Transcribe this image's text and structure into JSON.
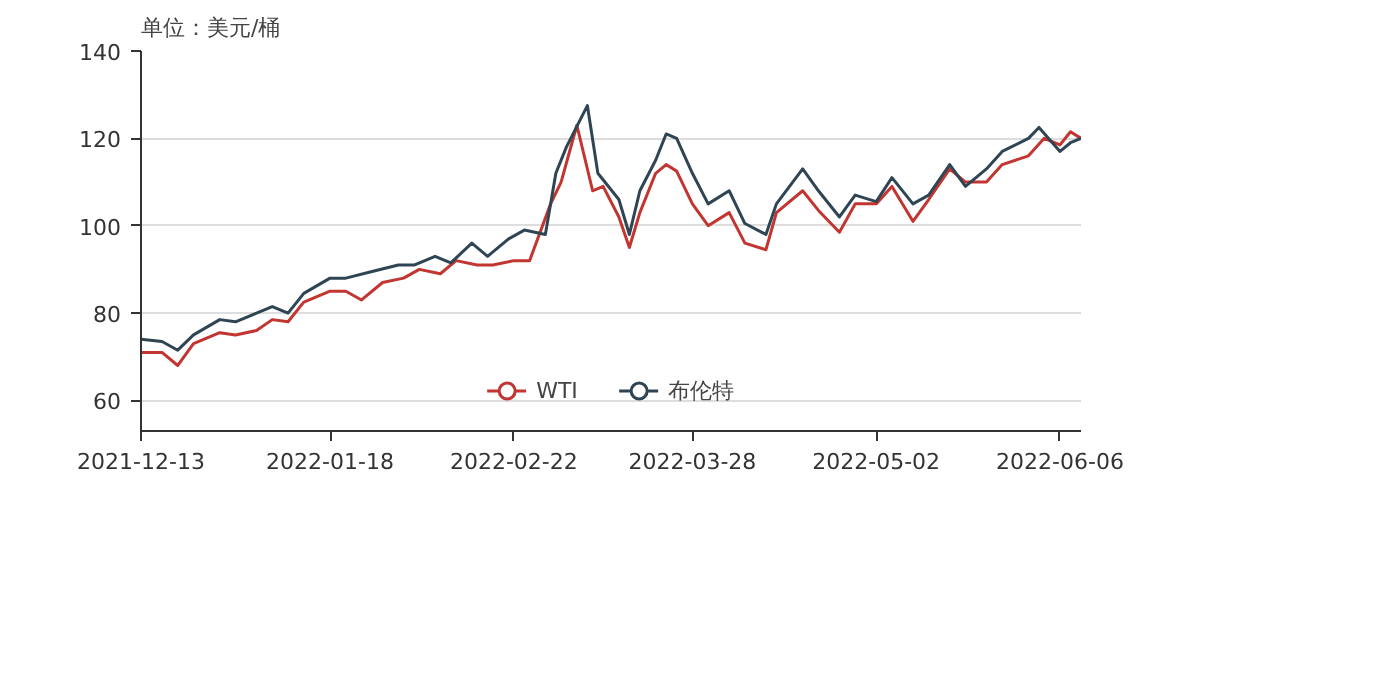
{
  "chart_data": {
    "type": "line",
    "ylabel": "单位：美元/桶",
    "xlim": [
      "2021-12-13",
      "2022-06-10"
    ],
    "xticks": [
      {
        "value": "2021-12-13",
        "label": "2021-12-13"
      },
      {
        "value": "2022-01-18",
        "label": "2022-01-18"
      },
      {
        "value": "2022-02-22",
        "label": "2022-02-22"
      },
      {
        "value": "2022-03-28",
        "label": "2022-03-28"
      },
      {
        "value": "2022-05-02",
        "label": "2022-05-02"
      },
      {
        "value": "2022-06-06",
        "label": "2022-06-06"
      }
    ],
    "ylim": [
      53,
      140
    ],
    "yticks": [
      60,
      80,
      100,
      120,
      140
    ],
    "grid": "y",
    "legend": "bottom",
    "marker": "none",
    "line_style": "solid",
    "series": [
      {
        "name": "WTI",
        "color": "#c23531",
        "x": [
          "2021-12-13",
          "2021-12-17",
          "2021-12-20",
          "2021-12-23",
          "2021-12-28",
          "2021-12-31",
          "2022-01-04",
          "2022-01-07",
          "2022-01-10",
          "2022-01-13",
          "2022-01-18",
          "2022-01-21",
          "2022-01-24",
          "2022-01-28",
          "2022-02-01",
          "2022-02-04",
          "2022-02-08",
          "2022-02-11",
          "2022-02-15",
          "2022-02-18",
          "2022-02-22",
          "2022-02-25",
          "2022-03-01",
          "2022-03-03",
          "2022-03-06",
          "2022-03-09",
          "2022-03-11",
          "2022-03-14",
          "2022-03-16",
          "2022-03-18",
          "2022-03-21",
          "2022-03-23",
          "2022-03-25",
          "2022-03-28",
          "2022-03-31",
          "2022-04-04",
          "2022-04-07",
          "2022-04-11",
          "2022-04-13",
          "2022-04-18",
          "2022-04-21",
          "2022-04-25",
          "2022-04-28",
          "2022-05-02",
          "2022-05-05",
          "2022-05-09",
          "2022-05-12",
          "2022-05-16",
          "2022-05-19",
          "2022-05-23",
          "2022-05-26",
          "2022-05-31",
          "2022-06-03",
          "2022-06-06",
          "2022-06-08",
          "2022-06-10"
        ],
        "values": [
          71,
          71,
          68,
          73,
          75.5,
          75,
          76,
          78.5,
          78,
          82.5,
          85,
          85,
          83,
          87,
          88,
          90,
          89,
          92,
          91,
          91,
          92,
          92,
          105,
          110,
          123,
          108,
          109,
          102,
          95,
          103,
          112,
          114,
          112.5,
          105,
          100,
          103,
          96,
          94.5,
          103,
          108,
          103.5,
          98.5,
          105,
          105,
          109,
          101,
          106,
          113,
          110,
          110,
          114,
          116,
          120,
          118.5,
          121.5,
          120
        ]
      },
      {
        "name": "布伦特",
        "color": "#2f4554",
        "x": [
          "2021-12-13",
          "2021-12-17",
          "2021-12-20",
          "2021-12-23",
          "2021-12-28",
          "2021-12-31",
          "2022-01-04",
          "2022-01-07",
          "2022-01-10",
          "2022-01-13",
          "2022-01-18",
          "2022-01-21",
          "2022-01-26",
          "2022-01-31",
          "2022-02-03",
          "2022-02-07",
          "2022-02-10",
          "2022-02-14",
          "2022-02-17",
          "2022-02-21",
          "2022-02-24",
          "2022-02-28",
          "2022-03-02",
          "2022-03-04",
          "2022-03-08",
          "2022-03-10",
          "2022-03-14",
          "2022-03-16",
          "2022-03-18",
          "2022-03-21",
          "2022-03-23",
          "2022-03-25",
          "2022-03-28",
          "2022-03-31",
          "2022-04-04",
          "2022-04-07",
          "2022-04-11",
          "2022-04-13",
          "2022-04-18",
          "2022-04-21",
          "2022-04-25",
          "2022-04-28",
          "2022-05-02",
          "2022-05-05",
          "2022-05-09",
          "2022-05-12",
          "2022-05-16",
          "2022-05-19",
          "2022-05-23",
          "2022-05-26",
          "2022-05-31",
          "2022-06-02",
          "2022-06-06",
          "2022-06-08",
          "2022-06-10"
        ],
        "values": [
          74,
          73.5,
          71.5,
          75,
          78.5,
          78,
          80,
          81.5,
          80,
          84.5,
          88,
          88,
          89.5,
          91,
          91,
          93,
          91.5,
          96,
          93,
          97,
          99,
          98,
          112,
          118,
          127.5,
          112,
          106,
          98,
          108,
          115,
          121,
          120,
          112,
          105,
          108,
          100.5,
          98,
          105,
          113,
          108,
          102,
          107,
          105.5,
          111,
          105,
          107,
          114,
          109,
          113,
          117,
          120,
          122.5,
          117,
          119,
          120
        ]
      }
    ]
  }
}
